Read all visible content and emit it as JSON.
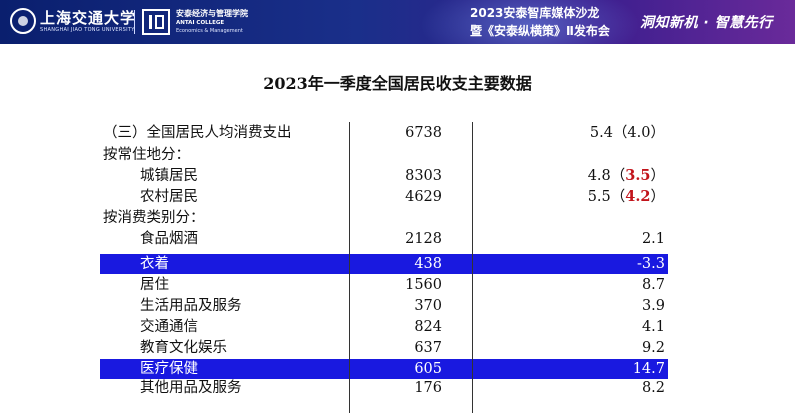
{
  "header": {
    "university_name": "上海交通大学",
    "university_sub": "SHANGHAI JIAO TONG UNIVERSITY",
    "school_cn": "安泰经济与管理学院",
    "school_en1": "ANTAI COLLEGE",
    "school_en2": "Economics & Management",
    "event_line1": "2023安泰智库媒体沙龙",
    "event_line2": "暨《安泰纵横策》Ⅱ发布会",
    "slogan_a": "洞知新机",
    "slogan_sep": "·",
    "slogan_b": "智慧先行"
  },
  "table": {
    "title": "2023年一季度全国居民收支主要数据",
    "rows": [
      {
        "label": "（三）全国居民人均消费支出",
        "v1": "6738",
        "v2_main": "5.4（4.0）",
        "v2_red": ""
      },
      {
        "label": "按常住地分：",
        "v1": "",
        "v2_main": "",
        "v2_red": ""
      },
      {
        "label": "城镇居民",
        "v1": "8303",
        "v2_main": "4.8（",
        "v2_red": "3.5",
        "v2_tail": "）"
      },
      {
        "label": "农村居民",
        "v1": "4629",
        "v2_main": "5.5（",
        "v2_red": "4.2",
        "v2_tail": "）"
      },
      {
        "label": "按消费类别分：",
        "v1": "",
        "v2_main": "",
        "v2_red": ""
      },
      {
        "label": "食品烟酒",
        "v1": "2128",
        "v2_main": "2.1",
        "v2_red": ""
      },
      {
        "label": "衣着",
        "v1": "438",
        "v2_main": "-3.3",
        "v2_red": ""
      },
      {
        "label": "居住",
        "v1": "1560",
        "v2_main": "8.7",
        "v2_red": ""
      },
      {
        "label": "生活用品及服务",
        "v1": "370",
        "v2_main": "3.9",
        "v2_red": ""
      },
      {
        "label": "交通通信",
        "v1": "824",
        "v2_main": "4.1",
        "v2_red": ""
      },
      {
        "label": "教育文化娱乐",
        "v1": "637",
        "v2_main": "9.2",
        "v2_red": ""
      },
      {
        "label": "医疗保健",
        "v1": "605",
        "v2_main": "14.7",
        "v2_red": ""
      },
      {
        "label": "其他用品及服务",
        "v1": "176",
        "v2_main": "8.2",
        "v2_red": ""
      }
    ]
  },
  "colors": {
    "banner": "#0a1f6e",
    "highlight": "#1919e0",
    "red_value": "#c2141b"
  }
}
